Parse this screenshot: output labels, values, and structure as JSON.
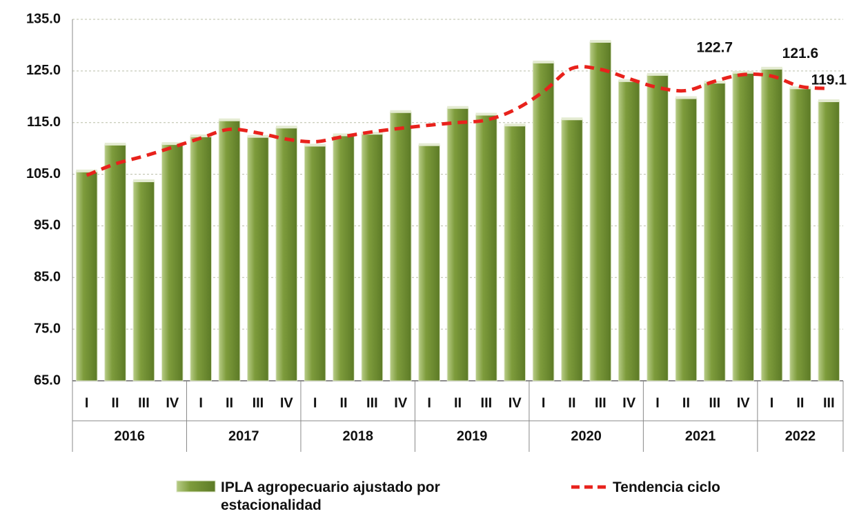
{
  "chart_data": {
    "type": "bar",
    "categories": [
      "I",
      "II",
      "III",
      "IV",
      "I",
      "II",
      "III",
      "IV",
      "I",
      "II",
      "III",
      "IV",
      "I",
      "II",
      "III",
      "IV",
      "I",
      "II",
      "III",
      "IV",
      "I",
      "II",
      "III",
      "IV",
      "I",
      "II",
      "III"
    ],
    "category_groups": [
      {
        "name": "2016",
        "count": 4
      },
      {
        "name": "2017",
        "count": 4
      },
      {
        "name": "2018",
        "count": 4
      },
      {
        "name": "2019",
        "count": 4
      },
      {
        "name": "2020",
        "count": 4
      },
      {
        "name": "2021",
        "count": 4
      },
      {
        "name": "2022",
        "count": 3
      }
    ],
    "series": [
      {
        "name": "IPLA agropecuario ajustado por estacionalidad",
        "type": "bar",
        "color": "#7e9c3c",
        "values": [
          105.5,
          110.7,
          103.6,
          110.8,
          112.3,
          115.4,
          112.2,
          114.0,
          110.5,
          112.5,
          112.8,
          117.0,
          110.6,
          117.8,
          116.5,
          114.4,
          126.6,
          115.6,
          130.6,
          123.0,
          124.2,
          119.7,
          122.7,
          124.6,
          125.4,
          121.6,
          119.1
        ],
        "value_labels": [
          null,
          null,
          null,
          null,
          null,
          null,
          null,
          null,
          null,
          null,
          null,
          null,
          null,
          null,
          null,
          null,
          null,
          null,
          null,
          null,
          null,
          null,
          "122.7",
          null,
          null,
          "121.6",
          "119.1"
        ]
      },
      {
        "name": "Tendencia ciclo",
        "type": "line",
        "color": "#e8221c",
        "values": [
          104.8,
          107.0,
          108.5,
          110.2,
          112.0,
          113.7,
          113.0,
          111.8,
          111.3,
          112.3,
          113.2,
          113.9,
          114.5,
          115.0,
          115.5,
          117.5,
          121.0,
          125.5,
          125.3,
          123.5,
          121.8,
          121.2,
          123.0,
          124.3,
          124.0,
          122.0,
          121.6
        ]
      }
    ],
    "ylim": [
      65,
      135
    ],
    "yticks": [
      {
        "value": 65,
        "label": "65.0"
      },
      {
        "value": 75,
        "label": "75.0"
      },
      {
        "value": 85,
        "label": "85.0"
      },
      {
        "value": 95,
        "label": "95.0"
      },
      {
        "value": 105,
        "label": "105.0"
      },
      {
        "value": 115,
        "label": "115.0"
      },
      {
        "value": 125,
        "label": "125.0"
      },
      {
        "value": 135,
        "label": "135.0"
      }
    ],
    "grid": true
  }
}
